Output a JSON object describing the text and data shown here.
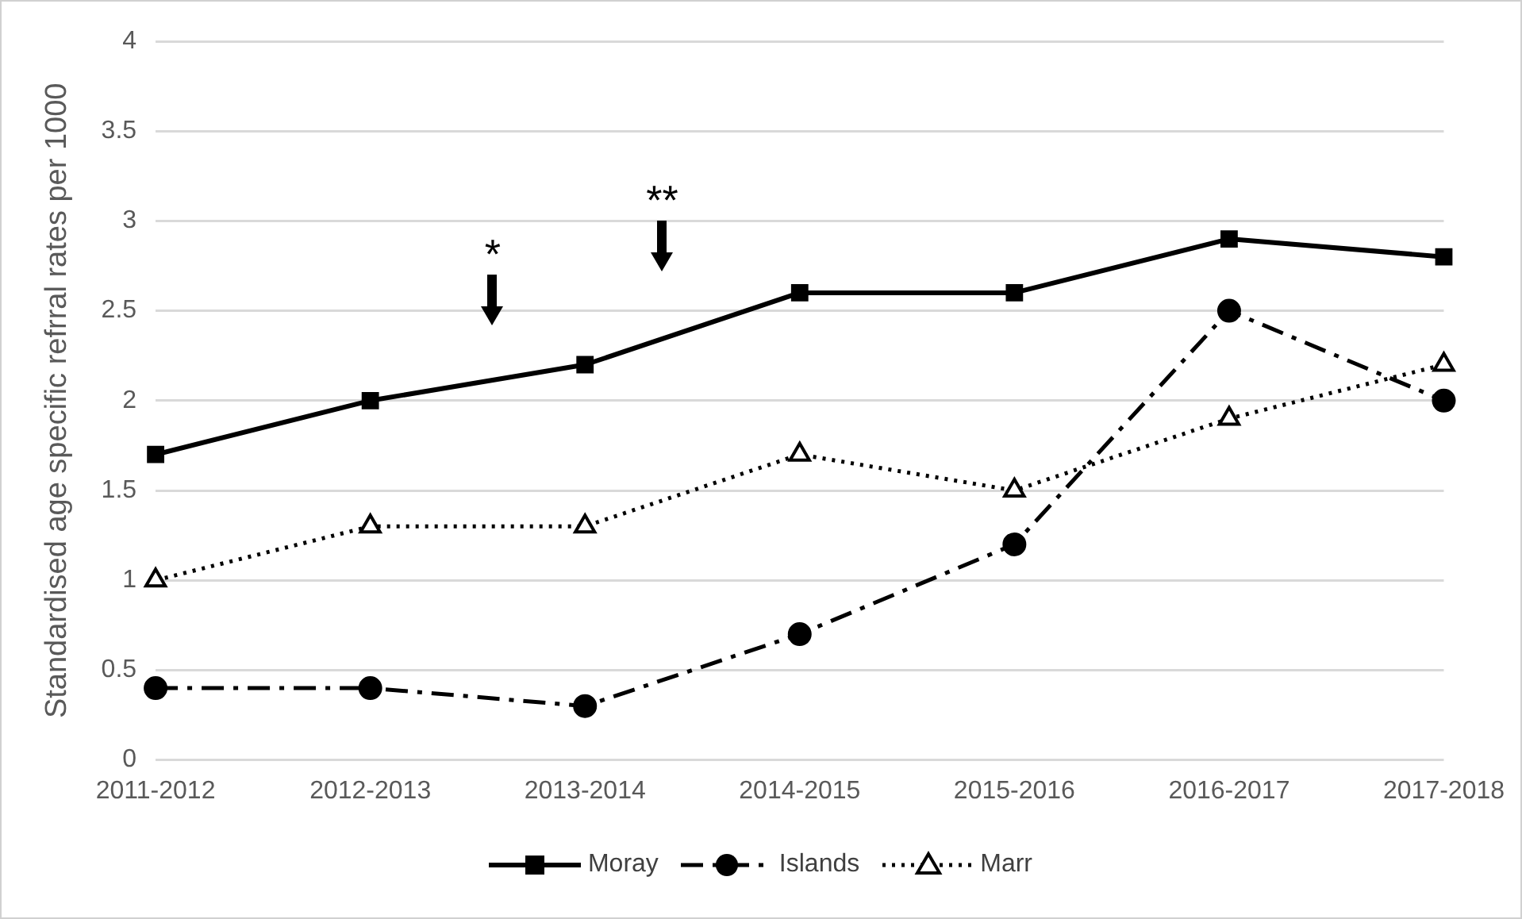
{
  "chart_data": {
    "type": "line",
    "ylabel": "Standardised age specific refrral rates per 1000",
    "categories": [
      "2011-2012",
      "2012-2013",
      "2013-2014",
      "2014-2015",
      "2015-2016",
      "2016-2017",
      "2017-2018"
    ],
    "series": [
      {
        "name": "Moray",
        "color": "#000000",
        "marker": "square",
        "line_style": "solid",
        "values": [
          1.7,
          2.0,
          2.2,
          2.6,
          2.6,
          2.9,
          2.8
        ]
      },
      {
        "name": "Islands",
        "color": "#000000",
        "marker": "circle",
        "line_style": "dashed",
        "values": [
          0.4,
          0.4,
          0.3,
          0.7,
          1.2,
          2.5,
          2.0
        ]
      },
      {
        "name": "Marr",
        "color": "#000000",
        "marker": "triangle",
        "line_style": "dotted",
        "values": [
          1.0,
          1.3,
          1.3,
          1.7,
          1.5,
          1.9,
          2.2
        ]
      }
    ],
    "ylim": [
      0,
      4
    ],
    "yticks": [
      0,
      0.5,
      1,
      1.5,
      2,
      2.5,
      3,
      3.5,
      4
    ],
    "grid": "y",
    "legend": "bottom",
    "annotations": [
      "*",
      "**"
    ]
  }
}
